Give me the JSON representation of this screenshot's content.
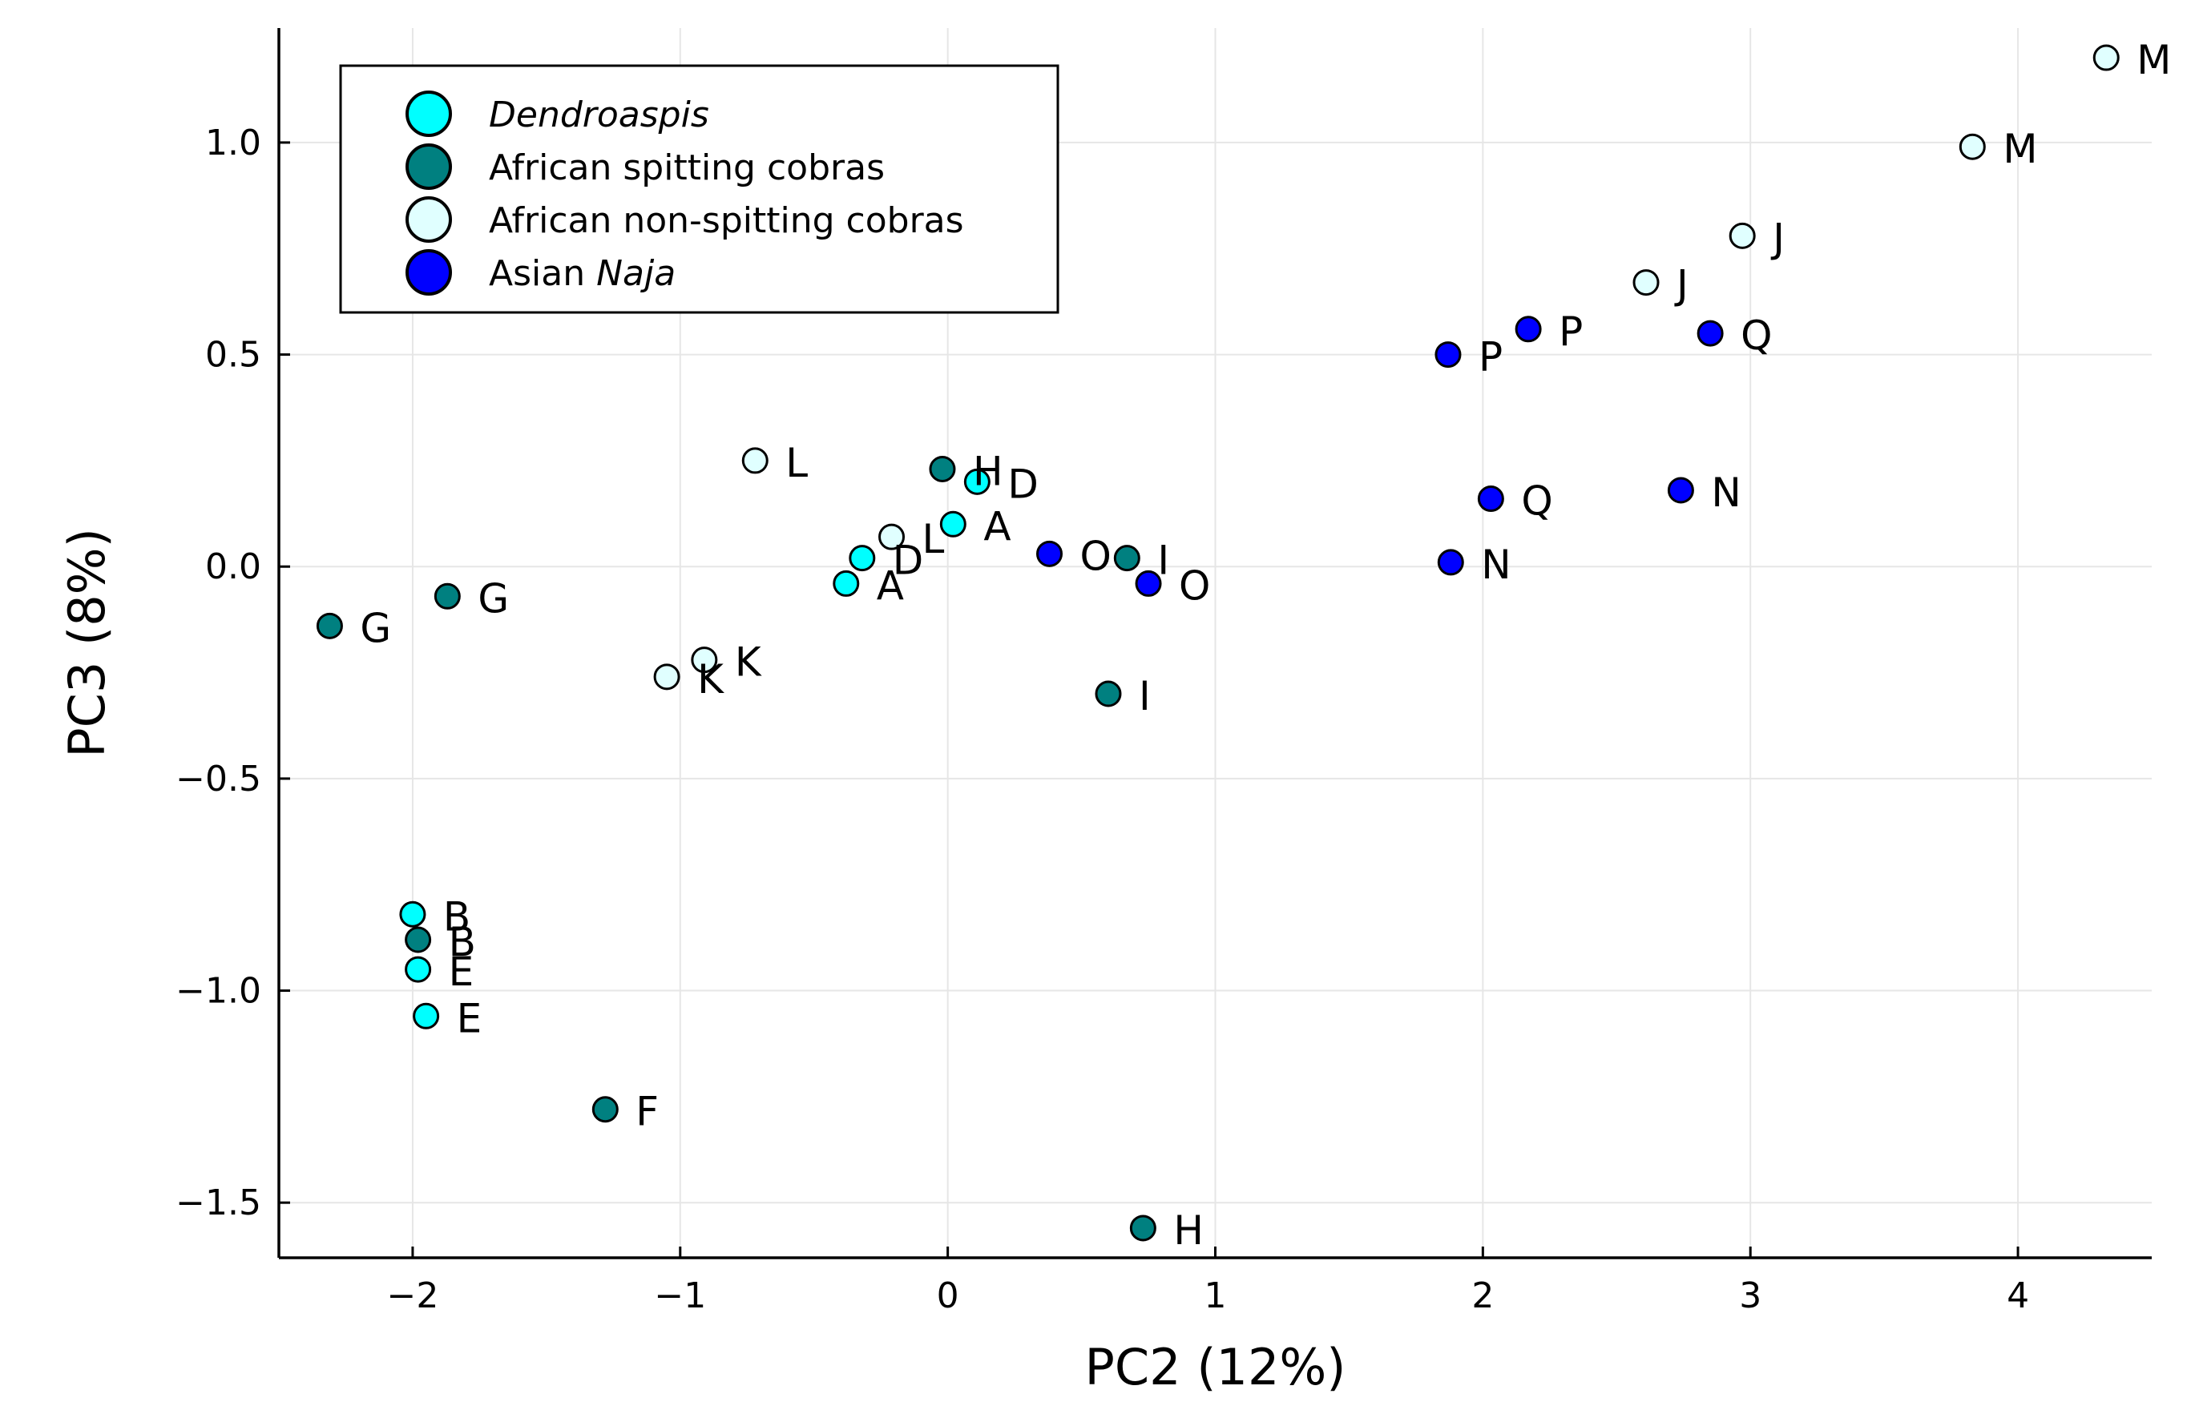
{
  "chart_data": {
    "type": "scatter",
    "xlabel": "PC2 (12%)",
    "ylabel": "PC3 (8%)",
    "xlim": [
      -2.5,
      4.5
    ],
    "ylim": [
      -1.63,
      1.27
    ],
    "xticks": [
      -2,
      -1,
      0,
      1,
      2,
      3,
      4
    ],
    "xtick_labels": [
      "−2",
      "−1",
      "0",
      "1",
      "2",
      "3",
      "4"
    ],
    "yticks": [
      -1.5,
      -1.0,
      -0.5,
      0.0,
      0.5,
      1.0
    ],
    "ytick_labels": [
      "−1.5",
      "−1.0",
      "−0.5",
      "0.0",
      "0.5",
      "1.0"
    ],
    "grid": true,
    "legend_position": "top-left",
    "series": [
      {
        "name": "Dendroaspis",
        "name_italic": true,
        "color": "#00ffff",
        "points": [
          {
            "x": 0.11,
            "y": 0.2,
            "label": "D"
          },
          {
            "x": 0.02,
            "y": 0.1,
            "label": "A"
          },
          {
            "x": -0.32,
            "y": 0.02,
            "label": "D"
          },
          {
            "x": -0.38,
            "y": -0.04,
            "label": "A"
          },
          {
            "x": -2.0,
            "y": -0.82,
            "label": "B"
          },
          {
            "x": -1.98,
            "y": -0.95,
            "label": "E"
          },
          {
            "x": -1.95,
            "y": -1.06,
            "label": "E"
          }
        ]
      },
      {
        "name": "African spitting cobras",
        "color": "#008080",
        "points": [
          {
            "x": -0.02,
            "y": 0.23,
            "label": "H"
          },
          {
            "x": 0.67,
            "y": 0.02,
            "label": "I"
          },
          {
            "x": -1.87,
            "y": -0.07,
            "label": "G"
          },
          {
            "x": -2.31,
            "y": -0.14,
            "label": "G"
          },
          {
            "x": 0.6,
            "y": -0.3,
            "label": "I"
          },
          {
            "x": -1.98,
            "y": -0.88,
            "label": "B"
          },
          {
            "x": -1.28,
            "y": -1.28,
            "label": "F"
          },
          {
            "x": 0.73,
            "y": -1.56,
            "label": "H"
          }
        ]
      },
      {
        "name": "African non-spitting cobras",
        "color": "#e0ffff",
        "points": [
          {
            "x": 4.33,
            "y": 1.2,
            "label": "M"
          },
          {
            "x": 3.83,
            "y": 0.99,
            "label": "M"
          },
          {
            "x": 2.97,
            "y": 0.78,
            "label": "J"
          },
          {
            "x": 2.61,
            "y": 0.67,
            "label": "J"
          },
          {
            "x": -0.72,
            "y": 0.25,
            "label": "L"
          },
          {
            "x": -0.21,
            "y": 0.07,
            "label": "L"
          },
          {
            "x": -0.91,
            "y": -0.22,
            "label": "K"
          },
          {
            "x": -1.05,
            "y": -0.26,
            "label": "K"
          }
        ]
      },
      {
        "name": "Asian Naja",
        "name_parts": [
          "Asian ",
          "Naja"
        ],
        "color": "#0000ff",
        "points": [
          {
            "x": 2.17,
            "y": 0.56,
            "label": "P"
          },
          {
            "x": 1.87,
            "y": 0.5,
            "label": "P"
          },
          {
            "x": 2.85,
            "y": 0.55,
            "label": "Q"
          },
          {
            "x": 2.03,
            "y": 0.16,
            "label": "Q"
          },
          {
            "x": 2.74,
            "y": 0.18,
            "label": "N"
          },
          {
            "x": 1.88,
            "y": 0.01,
            "label": "N"
          },
          {
            "x": 0.38,
            "y": 0.03,
            "label": "O"
          },
          {
            "x": 0.75,
            "y": -0.04,
            "label": "O"
          }
        ]
      }
    ]
  }
}
